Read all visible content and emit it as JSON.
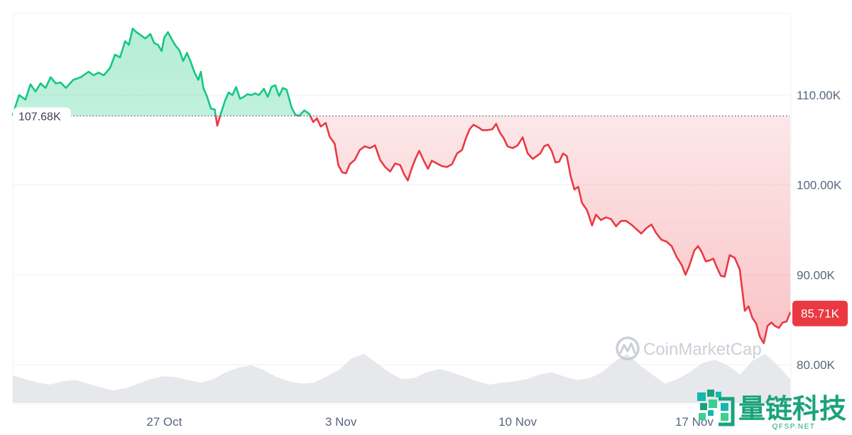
{
  "chart_data": {
    "type": "area",
    "baseline_value": 107.68,
    "baseline_label": "107.68K",
    "current_label": "85.71K",
    "y_ticks": [
      {
        "value": 110,
        "label": "110.00K"
      },
      {
        "value": 100,
        "label": "100.00K"
      },
      {
        "value": 90,
        "label": "90.00K"
      },
      {
        "value": 80,
        "label": "80.00K"
      }
    ],
    "x_ticks": [
      {
        "day": 6.0,
        "label": "27 Oct"
      },
      {
        "day": 13.0,
        "label": "3 Nov"
      },
      {
        "day": 20.0,
        "label": "10 Nov"
      },
      {
        "day": 27.0,
        "label": "17 Nov"
      }
    ],
    "ylim": [
      75.5,
      119
    ],
    "xlim": [
      0,
      30.8
    ],
    "grid": true,
    "colors": {
      "up_line": "#16c784",
      "down_line": "#ea3943",
      "up_fill": "#16c784",
      "down_fill": "#ea3943",
      "volume": "#e6e8ec",
      "grid": "#eff1f4",
      "text": "#58667e",
      "watermark": "#c3c8d1",
      "brand_green": "#1aa37a",
      "brand_teal": "#14b8b0"
    },
    "series": [
      {
        "points": [
          [
            0.0,
            107.8
          ],
          [
            0.25,
            110.0
          ],
          [
            0.5,
            109.5
          ],
          [
            0.7,
            111.2
          ],
          [
            0.9,
            110.4
          ],
          [
            1.1,
            111.3
          ],
          [
            1.3,
            110.8
          ],
          [
            1.5,
            112.0
          ],
          [
            1.7,
            111.3
          ],
          [
            1.9,
            111.4
          ],
          [
            2.1,
            110.8
          ],
          [
            2.4,
            111.7
          ],
          [
            2.7,
            112.0
          ],
          [
            3.0,
            112.6
          ],
          [
            3.2,
            112.2
          ],
          [
            3.4,
            112.5
          ],
          [
            3.6,
            112.2
          ],
          [
            3.85,
            113.0
          ],
          [
            4.05,
            114.5
          ],
          [
            4.25,
            114.2
          ],
          [
            4.45,
            116.0
          ],
          [
            4.6,
            115.6
          ],
          [
            4.75,
            117.4
          ],
          [
            4.9,
            117.0
          ],
          [
            5.05,
            116.7
          ],
          [
            5.25,
            116.3
          ],
          [
            5.45,
            116.8
          ],
          [
            5.6,
            115.8
          ],
          [
            5.75,
            115.6
          ],
          [
            5.9,
            114.9
          ],
          [
            6.0,
            116.4
          ],
          [
            6.15,
            117.0
          ],
          [
            6.3,
            116.2
          ],
          [
            6.45,
            115.5
          ],
          [
            6.6,
            115.0
          ],
          [
            6.75,
            113.8
          ],
          [
            6.9,
            114.7
          ],
          [
            7.05,
            113.7
          ],
          [
            7.2,
            112.5
          ],
          [
            7.35,
            111.7
          ],
          [
            7.45,
            112.6
          ],
          [
            7.55,
            110.8
          ],
          [
            7.7,
            109.8
          ],
          [
            7.85,
            108.5
          ],
          [
            8.0,
            108.4
          ],
          [
            8.1,
            106.6
          ],
          [
            8.25,
            108.0
          ],
          [
            8.4,
            109.3
          ],
          [
            8.55,
            110.3
          ],
          [
            8.7,
            110.0
          ],
          [
            8.85,
            110.9
          ],
          [
            9.0,
            109.6
          ],
          [
            9.15,
            109.8
          ],
          [
            9.3,
            110.1
          ],
          [
            9.45,
            110.0
          ],
          [
            9.6,
            110.2
          ],
          [
            9.75,
            110.0
          ],
          [
            9.95,
            110.7
          ],
          [
            10.1,
            109.8
          ],
          [
            10.25,
            110.9
          ],
          [
            10.4,
            111.1
          ],
          [
            10.55,
            109.9
          ],
          [
            10.7,
            110.8
          ],
          [
            10.85,
            110.6
          ],
          [
            11.05,
            108.6
          ],
          [
            11.2,
            107.8
          ],
          [
            11.35,
            107.7
          ],
          [
            11.55,
            108.3
          ],
          [
            11.75,
            107.9
          ],
          [
            11.9,
            107.0
          ],
          [
            12.05,
            107.4
          ],
          [
            12.2,
            106.5
          ],
          [
            12.4,
            106.9
          ],
          [
            12.55,
            105.4
          ],
          [
            12.75,
            104.6
          ],
          [
            12.9,
            102.2
          ],
          [
            13.05,
            101.4
          ],
          [
            13.2,
            101.3
          ],
          [
            13.35,
            102.3
          ],
          [
            13.55,
            102.8
          ],
          [
            13.75,
            103.9
          ],
          [
            13.95,
            104.3
          ],
          [
            14.15,
            104.1
          ],
          [
            14.35,
            104.4
          ],
          [
            14.55,
            102.8
          ],
          [
            14.75,
            102.0
          ],
          [
            14.95,
            101.5
          ],
          [
            15.15,
            102.4
          ],
          [
            15.35,
            102.2
          ],
          [
            15.5,
            101.2
          ],
          [
            15.65,
            100.5
          ],
          [
            15.8,
            101.8
          ],
          [
            15.95,
            102.9
          ],
          [
            16.1,
            103.8
          ],
          [
            16.3,
            102.6
          ],
          [
            16.45,
            101.8
          ],
          [
            16.6,
            102.7
          ],
          [
            16.8,
            102.4
          ],
          [
            17.0,
            102.1
          ],
          [
            17.2,
            102.0
          ],
          [
            17.4,
            102.3
          ],
          [
            17.6,
            103.5
          ],
          [
            17.8,
            103.9
          ],
          [
            17.95,
            105.2
          ],
          [
            18.1,
            106.2
          ],
          [
            18.25,
            106.7
          ],
          [
            18.45,
            106.4
          ],
          [
            18.6,
            106.1
          ],
          [
            18.8,
            106.1
          ],
          [
            19.0,
            106.2
          ],
          [
            19.15,
            106.8
          ],
          [
            19.3,
            105.8
          ],
          [
            19.45,
            105.2
          ],
          [
            19.6,
            104.3
          ],
          [
            19.8,
            104.1
          ],
          [
            20.0,
            104.4
          ],
          [
            20.2,
            105.3
          ],
          [
            20.4,
            103.5
          ],
          [
            20.6,
            102.9
          ],
          [
            20.75,
            103.2
          ],
          [
            20.9,
            103.5
          ],
          [
            21.05,
            104.3
          ],
          [
            21.2,
            104.5
          ],
          [
            21.35,
            103.8
          ],
          [
            21.5,
            102.5
          ],
          [
            21.65,
            102.6
          ],
          [
            21.8,
            103.5
          ],
          [
            21.95,
            103.2
          ],
          [
            22.1,
            101.0
          ],
          [
            22.25,
            99.5
          ],
          [
            22.4,
            99.8
          ],
          [
            22.55,
            98.0
          ],
          [
            22.75,
            97.2
          ],
          [
            22.95,
            95.5
          ],
          [
            23.1,
            96.7
          ],
          [
            23.3,
            96.1
          ],
          [
            23.5,
            96.4
          ],
          [
            23.7,
            96.2
          ],
          [
            23.9,
            95.4
          ],
          [
            24.1,
            96.0
          ],
          [
            24.3,
            96.0
          ],
          [
            24.5,
            95.6
          ],
          [
            24.7,
            95.1
          ],
          [
            24.9,
            94.6
          ],
          [
            25.1,
            95.2
          ],
          [
            25.3,
            95.6
          ],
          [
            25.5,
            94.6
          ],
          [
            25.7,
            93.9
          ],
          [
            25.9,
            93.7
          ],
          [
            26.1,
            93.2
          ],
          [
            26.3,
            92.0
          ],
          [
            26.5,
            91.1
          ],
          [
            26.65,
            90.0
          ],
          [
            26.8,
            91.0
          ],
          [
            27.0,
            92.7
          ],
          [
            27.15,
            93.2
          ],
          [
            27.3,
            92.5
          ],
          [
            27.45,
            91.5
          ],
          [
            27.6,
            91.6
          ],
          [
            27.75,
            91.8
          ],
          [
            27.9,
            90.8
          ],
          [
            28.05,
            89.9
          ],
          [
            28.2,
            89.8
          ],
          [
            28.4,
            92.2
          ],
          [
            28.6,
            91.9
          ],
          [
            28.8,
            90.6
          ],
          [
            29.0,
            86.0
          ],
          [
            29.15,
            86.5
          ],
          [
            29.3,
            85.2
          ],
          [
            29.45,
            84.6
          ],
          [
            29.6,
            83.1
          ],
          [
            29.75,
            82.4
          ],
          [
            29.9,
            84.3
          ],
          [
            30.05,
            84.7
          ],
          [
            30.2,
            84.3
          ],
          [
            30.35,
            84.1
          ],
          [
            30.5,
            84.7
          ],
          [
            30.65,
            84.8
          ],
          [
            30.8,
            85.8
          ]
        ]
      }
    ],
    "volume": {
      "label": "volume",
      "values": [
        48,
        40,
        32,
        28,
        35,
        38,
        30,
        22,
        15,
        20,
        30,
        40,
        46,
        44,
        38,
        32,
        40,
        55,
        65,
        70,
        60,
        45,
        35,
        30,
        32,
        45,
        60,
        85,
        95,
        75,
        55,
        40,
        42,
        55,
        62,
        55,
        45,
        35,
        28,
        32,
        35,
        40,
        50,
        55,
        45,
        38,
        42,
        55,
        78,
        95,
        70,
        50,
        30,
        40,
        55,
        75,
        82,
        70,
        50,
        80,
        95,
        70,
        40
      ]
    }
  },
  "watermark": {
    "text": "CoinMarketCap",
    "icon": "coinmarketcap-logo-icon"
  },
  "corner_logo": {
    "text": "量链科技",
    "subtext": "QFSP.NET",
    "icon": "qfsp-logo-icon"
  }
}
